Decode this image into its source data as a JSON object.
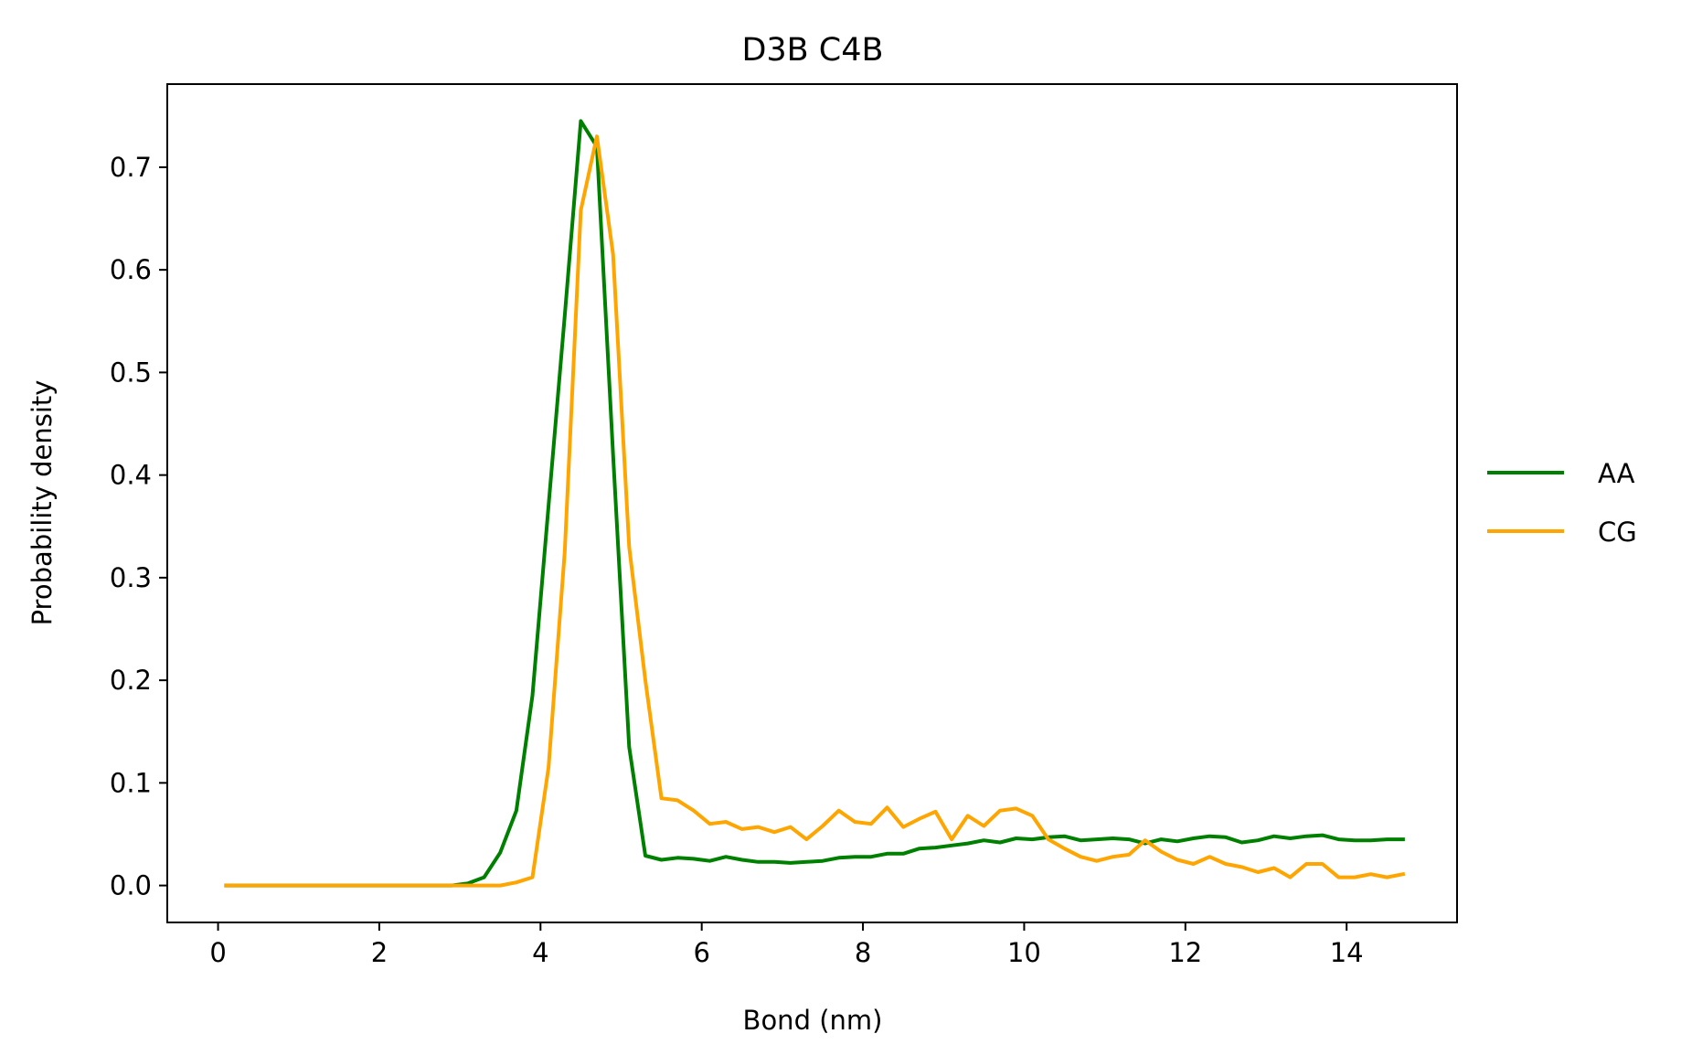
{
  "chart_data": {
    "type": "line",
    "title": "D3B C4B",
    "xlabel": "Bond (nm)",
    "ylabel": "Probability density",
    "xlim": [
      -0.63,
      15.37
    ],
    "ylim": [
      -0.036,
      0.781
    ],
    "xticks": [
      0,
      2,
      4,
      6,
      8,
      10,
      12,
      14
    ],
    "yticks": [
      0.0,
      0.1,
      0.2,
      0.3,
      0.4,
      0.5,
      0.6,
      0.7
    ],
    "ytick_labels": [
      "0.0",
      "0.1",
      "0.2",
      "0.3",
      "0.4",
      "0.5",
      "0.6",
      "0.7"
    ],
    "grid": false,
    "legend": "center-right-outside",
    "x": [
      0.1,
      0.3,
      0.5,
      0.7,
      0.9,
      1.1,
      1.3,
      1.5,
      1.7,
      1.9,
      2.1,
      2.3,
      2.5,
      2.7,
      2.9,
      3.1,
      3.3,
      3.5,
      3.7,
      3.9,
      4.1,
      4.3,
      4.5,
      4.7,
      4.9,
      5.1,
      5.3,
      5.5,
      5.7,
      5.9,
      6.1,
      6.3,
      6.5,
      6.7,
      6.9,
      7.1,
      7.3,
      7.5,
      7.7,
      7.9,
      8.1,
      8.3,
      8.5,
      8.7,
      8.9,
      9.1,
      9.3,
      9.5,
      9.7,
      9.9,
      10.1,
      10.3,
      10.5,
      10.7,
      10.9,
      11.1,
      11.3,
      11.5,
      11.7,
      11.9,
      12.1,
      12.3,
      12.5,
      12.7,
      12.9,
      13.1,
      13.3,
      13.5,
      13.7,
      13.9,
      14.1,
      14.3,
      14.5,
      14.7
    ],
    "series": [
      {
        "name": "AA",
        "color": "#008000",
        "values": [
          0,
          0,
          0,
          0,
          0,
          0,
          0,
          0,
          0,
          0,
          0,
          0,
          0,
          0,
          0,
          0.002,
          0.008,
          0.032,
          0.073,
          0.185,
          0.37,
          0.555,
          0.745,
          0.72,
          0.42,
          0.135,
          0.029,
          0.025,
          0.027,
          0.026,
          0.024,
          0.028,
          0.025,
          0.023,
          0.023,
          0.022,
          0.023,
          0.024,
          0.027,
          0.028,
          0.028,
          0.031,
          0.031,
          0.036,
          0.037,
          0.039,
          0.041,
          0.044,
          0.042,
          0.046,
          0.045,
          0.047,
          0.048,
          0.044,
          0.045,
          0.046,
          0.045,
          0.041,
          0.045,
          0.043,
          0.046,
          0.048,
          0.047,
          0.042,
          0.044,
          0.048,
          0.046,
          0.048,
          0.049,
          0.045,
          0.044,
          0.044,
          0.045,
          0.045
        ]
      },
      {
        "name": "CG",
        "color": "#ffa500",
        "values": [
          0,
          0,
          0,
          0,
          0,
          0,
          0,
          0,
          0,
          0,
          0,
          0,
          0,
          0,
          0,
          0,
          0,
          0,
          0.003,
          0.008,
          0.115,
          0.325,
          0.658,
          0.73,
          0.615,
          0.33,
          0.2,
          0.085,
          0.083,
          0.073,
          0.06,
          0.062,
          0.055,
          0.057,
          0.052,
          0.057,
          0.045,
          0.058,
          0.073,
          0.062,
          0.06,
          0.076,
          0.057,
          0.065,
          0.072,
          0.045,
          0.068,
          0.058,
          0.073,
          0.075,
          0.068,
          0.045,
          0.036,
          0.028,
          0.024,
          0.028,
          0.03,
          0.044,
          0.033,
          0.025,
          0.021,
          0.028,
          0.021,
          0.018,
          0.013,
          0.017,
          0.008,
          0.021,
          0.021,
          0.008,
          0.008,
          0.011,
          0.008,
          0.011
        ]
      }
    ]
  }
}
